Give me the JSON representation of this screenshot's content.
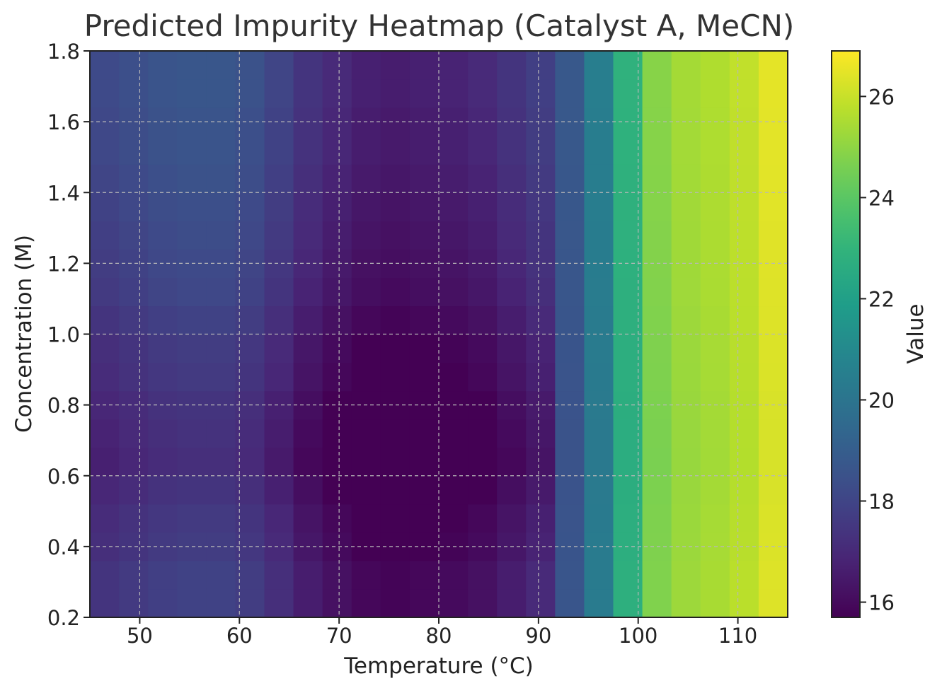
{
  "chart_data": {
    "type": "heatmap",
    "title": "Predicted Impurity Heatmap (Catalyst A, MeCN)",
    "xlabel": "Temperature (°C)",
    "ylabel": "Concentration (M)",
    "colorbar_label": "Value",
    "colormap": "viridis",
    "xlim": [
      45,
      115
    ],
    "ylim": [
      0.2,
      1.8
    ],
    "clim": [
      15.7,
      26.9
    ],
    "x_ticks": [
      50,
      60,
      70,
      80,
      90,
      100,
      110
    ],
    "x_tick_labels": [
      "50",
      "60",
      "70",
      "80",
      "90",
      "100",
      "110"
    ],
    "y_ticks": [
      0.2,
      0.4,
      0.6,
      0.8,
      1.0,
      1.2,
      1.4,
      1.6,
      1.8
    ],
    "y_tick_labels": [
      "0.2",
      "0.4",
      "0.6",
      "0.8",
      "1.0",
      "1.2",
      "1.4",
      "1.6",
      "1.8"
    ],
    "colorbar_ticks": [
      16,
      18,
      20,
      22,
      24,
      26
    ],
    "colorbar_tick_labels": [
      "16",
      "18",
      "20",
      "22",
      "24",
      "26"
    ],
    "grid": true,
    "x": [
      46.4,
      49.3,
      52.1,
      55.0,
      57.9,
      60.8,
      63.6,
      66.5,
      69.4,
      72.2,
      75.1,
      78.0,
      80.8,
      83.7,
      86.6,
      89.5,
      92.3,
      95.2,
      98.1,
      100.9,
      103.8,
      106.7,
      109.6,
      112.4
    ],
    "y": [
      0.24,
      0.32,
      0.4,
      0.48,
      0.56,
      0.64,
      0.72,
      0.8,
      0.88,
      0.96,
      1.04,
      1.12,
      1.2,
      1.28,
      1.36,
      1.44,
      1.52,
      1.6,
      1.68,
      1.76
    ],
    "column_offsets": [
      18.4,
      18.6,
      18.8,
      18.9,
      18.9,
      18.7,
      18.2,
      17.6,
      17.2,
      16.9,
      16.8,
      16.9,
      17.0,
      17.2,
      17.6,
      18.0,
      18.8,
      20.5,
      22.9,
      24.9,
      25.4,
      25.6,
      25.9,
      26.5
    ],
    "row_offsets": [
      -1.0,
      -1.0,
      -1.2,
      -1.3,
      -1.5,
      -1.7,
      -1.6,
      -1.5,
      -1.3,
      -1.2,
      -1.0,
      -0.8,
      -0.7,
      -0.6,
      -0.5,
      -0.4,
      -0.3,
      -0.3,
      -0.2,
      -0.2
    ],
    "note_values_estimated": true
  }
}
